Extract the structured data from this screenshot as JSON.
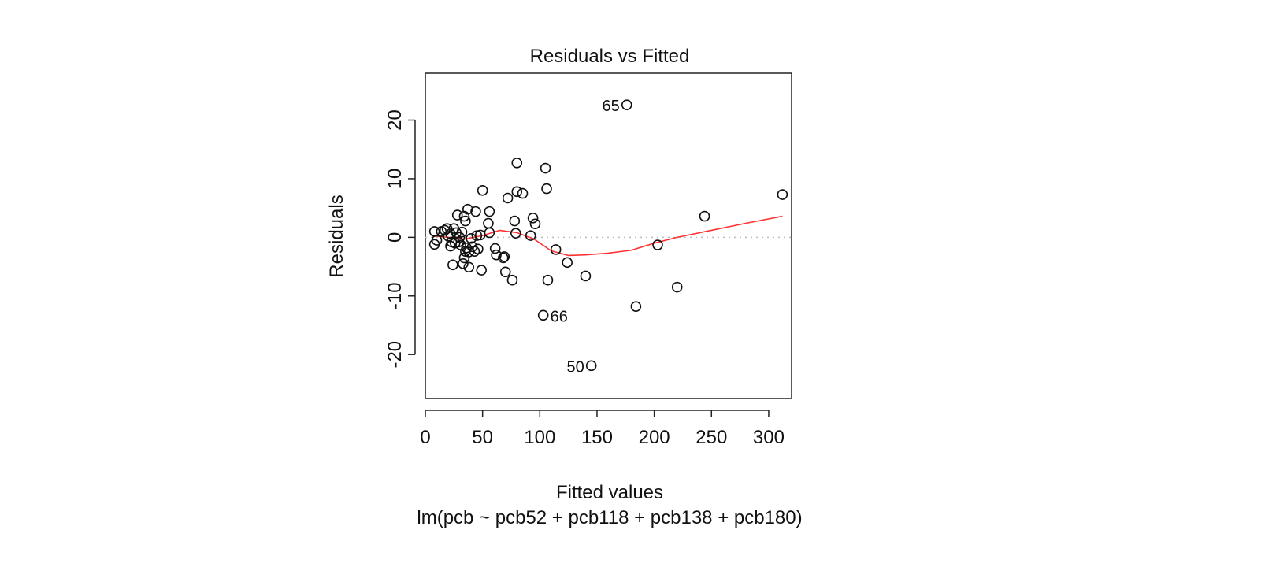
{
  "chart_data": {
    "type": "scatter",
    "title": "Residuals vs Fitted",
    "xlabel": "Fitted values",
    "ylabel": "Residuals",
    "subtitle": "lm(pcb ~ pcb52 + pcb118 + pcb138 + pcb180)",
    "xlim": [
      0,
      320
    ],
    "ylim": [
      -27.5,
      28
    ],
    "x_ticks": [
      0,
      50,
      100,
      150,
      200,
      250,
      300
    ],
    "y_ticks": [
      -20,
      -10,
      0,
      10,
      20
    ],
    "reference_line_y": 0,
    "grid": false,
    "points": [
      {
        "x": 8,
        "y": 1.0
      },
      {
        "x": 8,
        "y": -1.2
      },
      {
        "x": 10,
        "y": -0.5
      },
      {
        "x": 14,
        "y": 1.0
      },
      {
        "x": 17,
        "y": 1.2
      },
      {
        "x": 19,
        "y": 1.5
      },
      {
        "x": 20,
        "y": 0.2
      },
      {
        "x": 22,
        "y": -1.5
      },
      {
        "x": 22,
        "y": 0.6
      },
      {
        "x": 23,
        "y": -0.8
      },
      {
        "x": 24,
        "y": -4.7
      },
      {
        "x": 25,
        "y": 1.5
      },
      {
        "x": 26,
        "y": -1.0
      },
      {
        "x": 27,
        "y": 0.8
      },
      {
        "x": 28,
        "y": 3.8
      },
      {
        "x": 29,
        "y": -0.8
      },
      {
        "x": 30,
        "y": 0.0
      },
      {
        "x": 31,
        "y": -1.3
      },
      {
        "x": 32,
        "y": 0.9
      },
      {
        "x": 33,
        "y": -4.5
      },
      {
        "x": 34,
        "y": 3.6
      },
      {
        "x": 34,
        "y": -3.5
      },
      {
        "x": 35,
        "y": 2.8
      },
      {
        "x": 35,
        "y": -2.4
      },
      {
        "x": 36,
        "y": -1.8
      },
      {
        "x": 37,
        "y": 4.8
      },
      {
        "x": 38,
        "y": -2.5
      },
      {
        "x": 38,
        "y": -5.1
      },
      {
        "x": 40,
        "y": -0.2
      },
      {
        "x": 41,
        "y": -1.6
      },
      {
        "x": 43,
        "y": -2.4
      },
      {
        "x": 44,
        "y": 4.4
      },
      {
        "x": 45,
        "y": 0.3
      },
      {
        "x": 46,
        "y": -2.0
      },
      {
        "x": 48,
        "y": 0.4
      },
      {
        "x": 49,
        "y": -5.6
      },
      {
        "x": 50,
        "y": 8.0
      },
      {
        "x": 55,
        "y": 2.4
      },
      {
        "x": 56,
        "y": 4.4
      },
      {
        "x": 56,
        "y": 0.8
      },
      {
        "x": 61,
        "y": -1.9
      },
      {
        "x": 62,
        "y": -3.0
      },
      {
        "x": 68,
        "y": -3.5
      },
      {
        "x": 69,
        "y": -3.3
      },
      {
        "x": 70,
        "y": -5.9
      },
      {
        "x": 72,
        "y": 6.7
      },
      {
        "x": 76,
        "y": -7.3
      },
      {
        "x": 78,
        "y": 2.8
      },
      {
        "x": 79,
        "y": 0.7
      },
      {
        "x": 80,
        "y": 7.8
      },
      {
        "x": 80,
        "y": 12.7
      },
      {
        "x": 85,
        "y": 7.5
      },
      {
        "x": 92,
        "y": 0.3
      },
      {
        "x": 94,
        "y": 3.3
      },
      {
        "x": 96,
        "y": 2.3
      },
      {
        "x": 103,
        "y": -13.3
      },
      {
        "x": 105,
        "y": 11.8
      },
      {
        "x": 106,
        "y": 8.3
      },
      {
        "x": 107,
        "y": -7.3
      },
      {
        "x": 114,
        "y": -2.1
      },
      {
        "x": 124,
        "y": -4.3
      },
      {
        "x": 140,
        "y": -6.6
      },
      {
        "x": 145,
        "y": -21.9
      },
      {
        "x": 176,
        "y": 22.6
      },
      {
        "x": 184,
        "y": -11.8
      },
      {
        "x": 203,
        "y": -1.3
      },
      {
        "x": 220,
        "y": -8.5
      },
      {
        "x": 244,
        "y": 3.6
      },
      {
        "x": 312,
        "y": 7.3
      }
    ],
    "point_labels": [
      {
        "text": "65",
        "x": 176,
        "y": 22.6,
        "side": "left"
      },
      {
        "text": "66",
        "x": 103,
        "y": -13.3,
        "side": "right"
      },
      {
        "text": "50",
        "x": 145,
        "y": -21.9,
        "side": "left"
      }
    ],
    "smoother": {
      "color": "#ff3333",
      "x": [
        8,
        20,
        35,
        50,
        65,
        80,
        95,
        110,
        125,
        140,
        160,
        180,
        200,
        220,
        250,
        280,
        312
      ],
      "y": [
        0.2,
        0.0,
        -0.3,
        0.3,
        1.2,
        0.8,
        -0.3,
        -2.3,
        -3.1,
        -3.0,
        -2.7,
        -2.2,
        -1.0,
        0.0,
        1.2,
        2.4,
        3.6
      ]
    }
  }
}
